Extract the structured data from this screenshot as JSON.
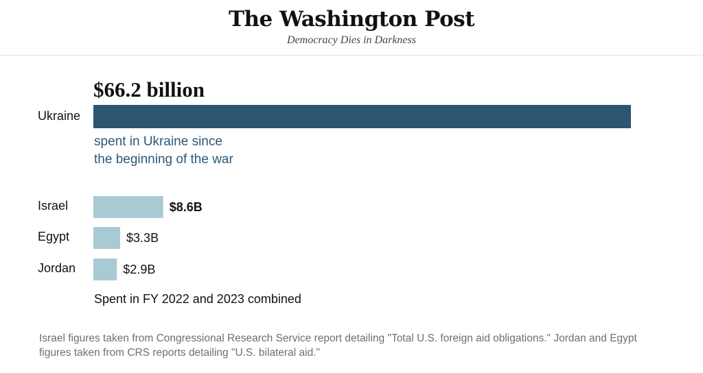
{
  "header": {
    "logo_text": "The Washington Post",
    "tagline": "Democracy Dies in Darkness"
  },
  "chart_data": {
    "type": "bar",
    "orientation": "horizontal",
    "primary": {
      "category": "Ukraine",
      "value": 66.2,
      "value_label": "$66.2 billion",
      "color": "#2b5571",
      "annotation_lines": [
        "spent in Ukraine since",
        "the beginning of the war"
      ]
    },
    "comparison": {
      "categories": [
        "Israel",
        "Egypt",
        "Jordan"
      ],
      "values": [
        8.6,
        3.3,
        2.9
      ],
      "value_labels": [
        "$8.6B",
        "$3.3B",
        "$2.9B"
      ],
      "bold_label_index": 0,
      "color": "#a8cbd3",
      "caption": "Spent in FY 2022 and 2023 combined"
    },
    "unit": "billion USD",
    "grid": false,
    "legend": "none"
  },
  "footnote": "Israel figures taken from Congressional Research Service report detailing \"Total U.S. foreign aid obligations.\" Jordan and Egypt figures taken from CRS reports detailing \"U.S. bilateral aid.\""
}
